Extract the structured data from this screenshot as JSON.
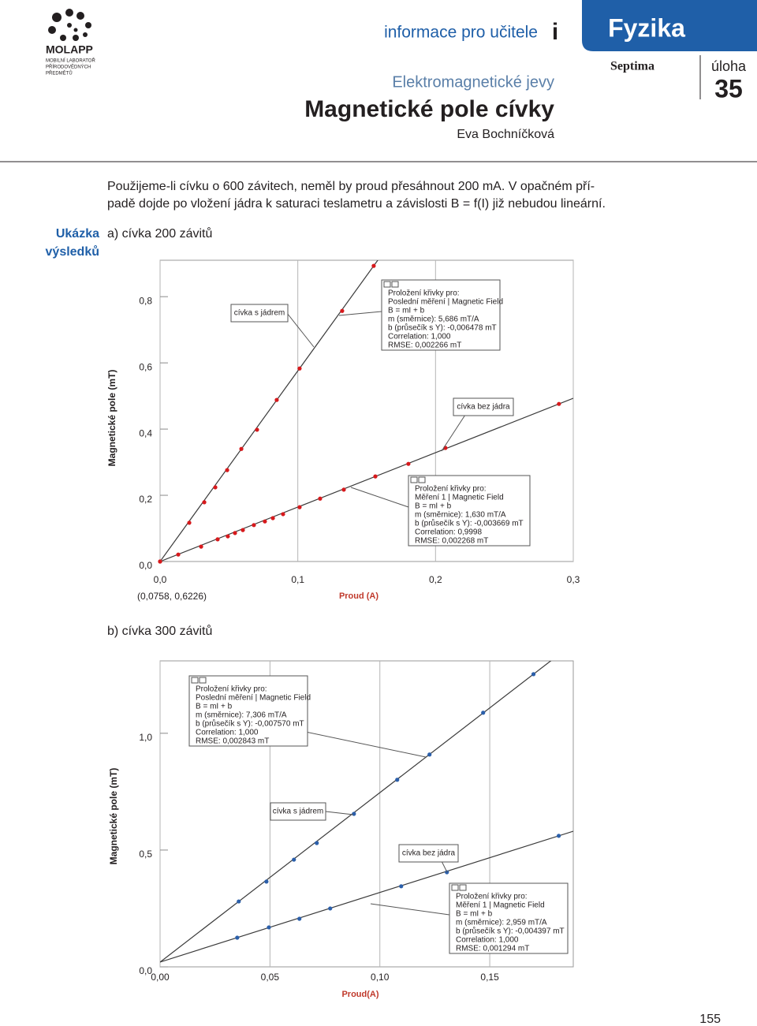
{
  "header": {
    "logo": "MOLAPP",
    "logo_subtitle": [
      "MOBILNÍ LABORATOŘ",
      "PŘÍRODOVĚDNÝCH",
      "PŘEDMĚTŮ"
    ],
    "section": "informace pro učitele",
    "section_icon": "i",
    "subject": "Fyzika",
    "grade": "Septima",
    "task_label": "úloha",
    "task_number": "35",
    "topic": "Elektromagnetické jevy",
    "title": "Magnetické pole cívky",
    "author": "Eva Bochníčková"
  },
  "intro": [
    "Použijeme-li cívku o 600 závitech, neměl by proud přesáhnout 200 mA. V opačném pří-",
    "padě dojde po vložení jádra k saturaci teslametru a závislosti B = f(I) již nebudou lineární."
  ],
  "section_label": [
    "Ukázka",
    "výsledků"
  ],
  "chart_data": [
    {
      "type": "scatter",
      "title": "a) cívka 200 závitů",
      "xlabel": "Proud (A)",
      "ylabel": "Magnetické pole (mT)",
      "annotation": "(0,0758, 0,6226)",
      "xlim": [
        0,
        0.3
      ],
      "ylim": [
        0,
        0.91
      ],
      "xticks": [
        {
          "value": 0,
          "label": "0,0"
        },
        {
          "value": 0.1,
          "label": "0,1"
        },
        {
          "value": 0.2,
          "label": "0,2"
        },
        {
          "value": 0.3,
          "label": "0,3"
        }
      ],
      "yticks": [
        {
          "value": 0,
          "label": "0,0"
        },
        {
          "value": 0.2,
          "label": "0,2"
        },
        {
          "value": 0.4,
          "label": "0,4"
        },
        {
          "value": 0.6,
          "label": "0,6"
        },
        {
          "value": 0.8,
          "label": "0,8"
        }
      ],
      "grid": true,
      "series": [
        {
          "name": "cívka s jádrem",
          "color": "#d7191c",
          "x": [
            0,
            0.0212,
            0.0321,
            0.0401,
            0.0487,
            0.059,
            0.0704,
            0.0847,
            0.1013,
            0.1322,
            0.1551
          ],
          "values": [
            0,
            0.117,
            0.179,
            0.224,
            0.276,
            0.34,
            0.398,
            0.488,
            0.583,
            0.757,
            0.893
          ],
          "fit": [
            "Proložení křivky pro:",
            "Poslední měření | Magnetic Field",
            "B = mI + b",
            "m (směrnice): 5,686 mT/A",
            "b (průsečík s Y): -0,006478 mT",
            "Correlation: 1,000",
            "RMSE: 0,002266 mT"
          ]
        },
        {
          "name": "cívka bez jádra",
          "color": "#d7191c",
          "x": [
            0,
            0.0132,
            0.0298,
            0.0418,
            0.0492,
            0.0544,
            0.0601,
            0.0681,
            0.0761,
            0.0819,
            0.0893,
            0.1013,
            0.1162,
            0.1334,
            0.1563,
            0.1803,
            0.2072,
            0.2896
          ],
          "values": [
            0,
            0.021,
            0.045,
            0.067,
            0.076,
            0.086,
            0.095,
            0.11,
            0.121,
            0.131,
            0.143,
            0.164,
            0.19,
            0.217,
            0.257,
            0.295,
            0.343,
            0.476
          ],
          "fit": [
            "Proložení křivky pro:",
            "Měření 1 | Magnetic Field",
            "B = mI + b",
            "m (směrnice): 1,630 mT/A",
            "b (průsečík s Y): -0,003669 mT",
            "Correlation: 0,9998",
            "RMSE: 0,002268 mT"
          ]
        }
      ]
    },
    {
      "type": "scatter",
      "title": "b) cívka 300 závitů",
      "xlabel": "Proud(A)",
      "ylabel": "Magnetické pole (mT)",
      "xlim": [
        0,
        0.188
      ],
      "ylim": [
        0,
        1.31
      ],
      "xticks": [
        {
          "value": 0,
          "label": "0,00"
        },
        {
          "value": 0.05,
          "label": "0,05"
        },
        {
          "value": 0.1,
          "label": "0,10"
        },
        {
          "value": 0.15,
          "label": "0,15"
        }
      ],
      "yticks": [
        {
          "value": 0,
          "label": "0,0"
        },
        {
          "value": 0.5,
          "label": "0,5"
        },
        {
          "value": 1,
          "label": "1,0"
        }
      ],
      "grid": true,
      "series": [
        {
          "name": "cívka s jádrem",
          "color": "#2b5faa",
          "x": [
            0.0358,
            0.0484,
            0.0609,
            0.0713,
            0.0882,
            0.1079,
            0.1226,
            0.147,
            0.1699
          ],
          "values": [
            0.28,
            0.365,
            0.459,
            0.53,
            0.655,
            0.801,
            0.909,
            1.088,
            1.253
          ],
          "fit": [
            "Proložení křivky pro:",
            "Poslední měření | Magnetic Field",
            "B = mI + b",
            "m (směrnice): 7,306 mT/A",
            "b (průsečík s Y): -0,007570 mT",
            "Correlation: 1,000",
            "RMSE: 0,002843 mT"
          ]
        },
        {
          "name": "cívka bez jádra",
          "color": "#2b5faa",
          "x": [
            0.0351,
            0.0495,
            0.0634,
            0.0774,
            0.1097,
            0.1305,
            0.1814
          ],
          "values": [
            0.125,
            0.169,
            0.206,
            0.25,
            0.345,
            0.405,
            0.561
          ],
          "fit": [
            "Proložení křivky pro:",
            "Měření 1 | Magnetic Field",
            "B = mI + b",
            "m (směrnice): 2,959 mT/A",
            "b (průsečík s Y): -0,004397 mT",
            "Correlation: 1,000",
            "RMSE: 0,001294 mT"
          ]
        }
      ]
    }
  ],
  "page_number": "155"
}
